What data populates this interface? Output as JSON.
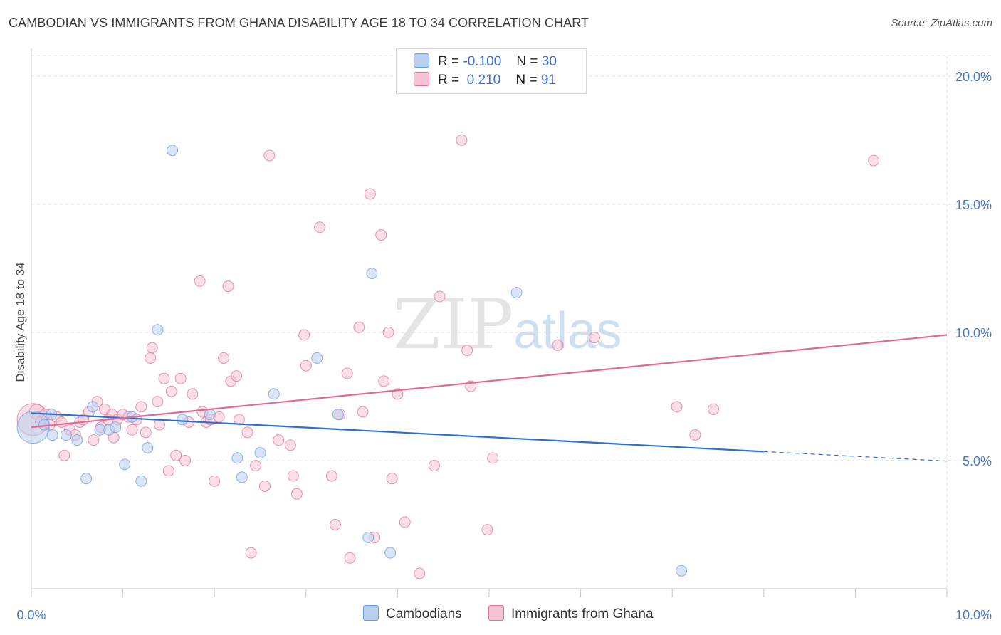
{
  "chart_data": {
    "type": "scatter",
    "title": "CAMBODIAN VS IMMIGRANTS FROM GHANA DISABILITY AGE 18 TO 34 CORRELATION CHART",
    "source": "Source: ZipAtlas.com",
    "xlabel": "",
    "ylabel": "Disability Age 18 to 34",
    "xlim": [
      0,
      10
    ],
    "ylim": [
      0,
      20.8
    ],
    "x_tick_labels": [
      "0.0%",
      "10.0%"
    ],
    "y_tick_labels": [
      "5.0%",
      "10.0%",
      "15.0%",
      "20.0%"
    ],
    "y_ticks": [
      5,
      10,
      15,
      20
    ],
    "watermark": {
      "part1": "ZIP",
      "part2": "atlas"
    },
    "legend": {
      "rows": [
        {
          "r_label": "R =",
          "r_value": "-0.100",
          "n_label": "N =",
          "n_value": "30"
        },
        {
          "r_label": "R =",
          "r_value": " 0.210",
          "n_label": "N =",
          "n_value": "91"
        }
      ]
    },
    "series": [
      {
        "name": "Cambodians",
        "color": "#6a9be0",
        "fill": "#b9d0f0",
        "trend": {
          "x0": 0.0,
          "y0": 6.85,
          "x1": 8.0,
          "y1": 5.35,
          "dash_to_x": 10.0,
          "dash_to_y": 4.98
        },
        "points": [
          [
            0.02,
            6.3,
            1.0
          ],
          [
            0.14,
            6.4,
            0.5
          ],
          [
            0.22,
            6.8,
            0.5
          ],
          [
            0.23,
            6.0,
            0.5
          ],
          [
            0.38,
            6.0,
            0.5
          ],
          [
            0.5,
            5.8,
            0.5
          ],
          [
            0.6,
            4.3,
            0.5
          ],
          [
            0.67,
            7.1,
            0.5
          ],
          [
            0.75,
            6.2,
            0.5
          ],
          [
            0.85,
            6.2,
            0.5
          ],
          [
            0.92,
            6.3,
            0.5
          ],
          [
            1.02,
            4.85,
            0.5
          ],
          [
            1.1,
            6.7,
            0.5
          ],
          [
            1.2,
            4.2,
            0.5
          ],
          [
            1.27,
            5.5,
            0.5
          ],
          [
            1.38,
            10.1,
            0.5
          ],
          [
            1.54,
            17.1,
            0.5
          ],
          [
            1.65,
            6.6,
            0.5
          ],
          [
            1.95,
            6.8,
            0.5
          ],
          [
            2.25,
            5.1,
            0.5
          ],
          [
            2.3,
            4.35,
            0.5
          ],
          [
            2.5,
            5.3,
            0.5
          ],
          [
            2.65,
            7.6,
            0.5
          ],
          [
            3.12,
            9.0,
            0.5
          ],
          [
            3.35,
            6.8,
            0.5
          ],
          [
            3.68,
            2.0,
            0.5
          ],
          [
            3.72,
            12.3,
            0.5
          ],
          [
            3.92,
            1.4,
            0.5
          ],
          [
            5.3,
            11.55,
            0.5
          ],
          [
            7.1,
            0.7,
            0.5
          ]
        ]
      },
      {
        "name": "Immigrants from Ghana",
        "color": "#e07098",
        "fill": "#f6c4d4",
        "trend": {
          "x0": 0.0,
          "y0": 6.3,
          "x1": 10.0,
          "y1": 9.9
        },
        "points": [
          [
            0.02,
            6.6,
            1.0
          ],
          [
            0.06,
            6.9,
            0.6
          ],
          [
            0.1,
            6.5,
            0.5
          ],
          [
            0.15,
            6.8,
            0.5
          ],
          [
            0.2,
            6.4,
            0.5
          ],
          [
            0.28,
            6.7,
            0.5
          ],
          [
            0.33,
            6.5,
            0.5
          ],
          [
            0.36,
            5.2,
            0.5
          ],
          [
            0.42,
            6.2,
            0.5
          ],
          [
            0.48,
            6.0,
            0.5
          ],
          [
            0.53,
            6.5,
            0.5
          ],
          [
            0.57,
            6.6,
            0.5
          ],
          [
            0.63,
            6.9,
            0.5
          ],
          [
            0.68,
            5.8,
            0.5
          ],
          [
            0.72,
            7.3,
            0.5
          ],
          [
            0.76,
            6.3,
            0.5
          ],
          [
            0.8,
            7.0,
            0.5
          ],
          [
            0.84,
            6.6,
            0.5
          ],
          [
            0.88,
            6.8,
            0.5
          ],
          [
            0.9,
            5.9,
            0.5
          ],
          [
            0.94,
            6.6,
            0.5
          ],
          [
            1.0,
            6.8,
            0.5
          ],
          [
            1.06,
            6.7,
            0.5
          ],
          [
            1.1,
            6.2,
            0.5
          ],
          [
            1.15,
            6.6,
            0.5
          ],
          [
            1.2,
            7.1,
            0.5
          ],
          [
            1.25,
            6.1,
            0.5
          ],
          [
            1.3,
            9.0,
            0.5
          ],
          [
            1.32,
            9.4,
            0.5
          ],
          [
            1.38,
            7.3,
            0.5
          ],
          [
            1.4,
            6.4,
            0.5
          ],
          [
            1.45,
            8.2,
            0.5
          ],
          [
            1.5,
            4.6,
            0.5
          ],
          [
            1.53,
            7.7,
            0.5
          ],
          [
            1.58,
            5.2,
            0.5
          ],
          [
            1.63,
            8.2,
            0.5
          ],
          [
            1.68,
            5.0,
            0.5
          ],
          [
            1.72,
            6.5,
            0.5
          ],
          [
            1.76,
            7.6,
            0.5
          ],
          [
            1.84,
            12.0,
            0.5
          ],
          [
            1.87,
            6.9,
            0.5
          ],
          [
            1.91,
            6.5,
            0.5
          ],
          [
            1.96,
            6.6,
            0.5
          ],
          [
            2.0,
            4.2,
            0.5
          ],
          [
            2.05,
            6.7,
            0.5
          ],
          [
            2.1,
            9.0,
            0.5
          ],
          [
            2.15,
            11.8,
            0.5
          ],
          [
            2.18,
            8.1,
            0.5
          ],
          [
            2.24,
            8.3,
            0.5
          ],
          [
            2.27,
            6.6,
            0.5
          ],
          [
            2.36,
            6.1,
            0.5
          ],
          [
            2.4,
            1.4,
            0.5
          ],
          [
            2.45,
            4.8,
            0.5
          ],
          [
            2.55,
            4.0,
            0.5
          ],
          [
            2.6,
            16.9,
            0.5
          ],
          [
            2.7,
            5.8,
            0.5
          ],
          [
            2.83,
            5.6,
            0.5
          ],
          [
            2.86,
            4.4,
            0.5
          ],
          [
            2.9,
            3.7,
            0.5
          ],
          [
            2.98,
            9.9,
            0.5
          ],
          [
            3.0,
            8.7,
            0.5
          ],
          [
            3.15,
            14.1,
            0.5
          ],
          [
            3.28,
            4.4,
            0.5
          ],
          [
            3.32,
            2.5,
            0.5
          ],
          [
            3.37,
            6.8,
            0.5
          ],
          [
            3.45,
            8.4,
            0.5
          ],
          [
            3.48,
            1.2,
            0.5
          ],
          [
            3.58,
            10.2,
            0.5
          ],
          [
            3.62,
            6.9,
            0.5
          ],
          [
            3.7,
            15.4,
            0.5
          ],
          [
            3.75,
            2.0,
            0.5
          ],
          [
            3.82,
            13.8,
            0.5
          ],
          [
            3.85,
            8.1,
            0.5
          ],
          [
            3.9,
            10.0,
            0.5
          ],
          [
            3.94,
            4.3,
            0.5
          ],
          [
            4.0,
            7.6,
            0.5
          ],
          [
            4.08,
            2.6,
            0.5
          ],
          [
            4.24,
            0.6,
            0.5
          ],
          [
            4.4,
            4.8,
            0.5
          ],
          [
            4.46,
            11.4,
            0.5
          ],
          [
            4.7,
            17.5,
            0.5
          ],
          [
            4.76,
            9.3,
            0.5
          ],
          [
            4.8,
            7.9,
            0.5
          ],
          [
            4.98,
            2.3,
            0.5
          ],
          [
            5.04,
            5.1,
            0.5
          ],
          [
            5.75,
            9.5,
            0.5
          ],
          [
            6.15,
            9.8,
            0.5
          ],
          [
            7.05,
            7.1,
            0.5
          ],
          [
            7.25,
            6.0,
            0.5
          ],
          [
            7.45,
            7.0,
            0.5
          ],
          [
            9.2,
            16.7,
            0.5
          ]
        ]
      }
    ]
  },
  "bottom_legend": [
    {
      "label": "Cambodians"
    },
    {
      "label": "Immigrants from Ghana"
    }
  ]
}
